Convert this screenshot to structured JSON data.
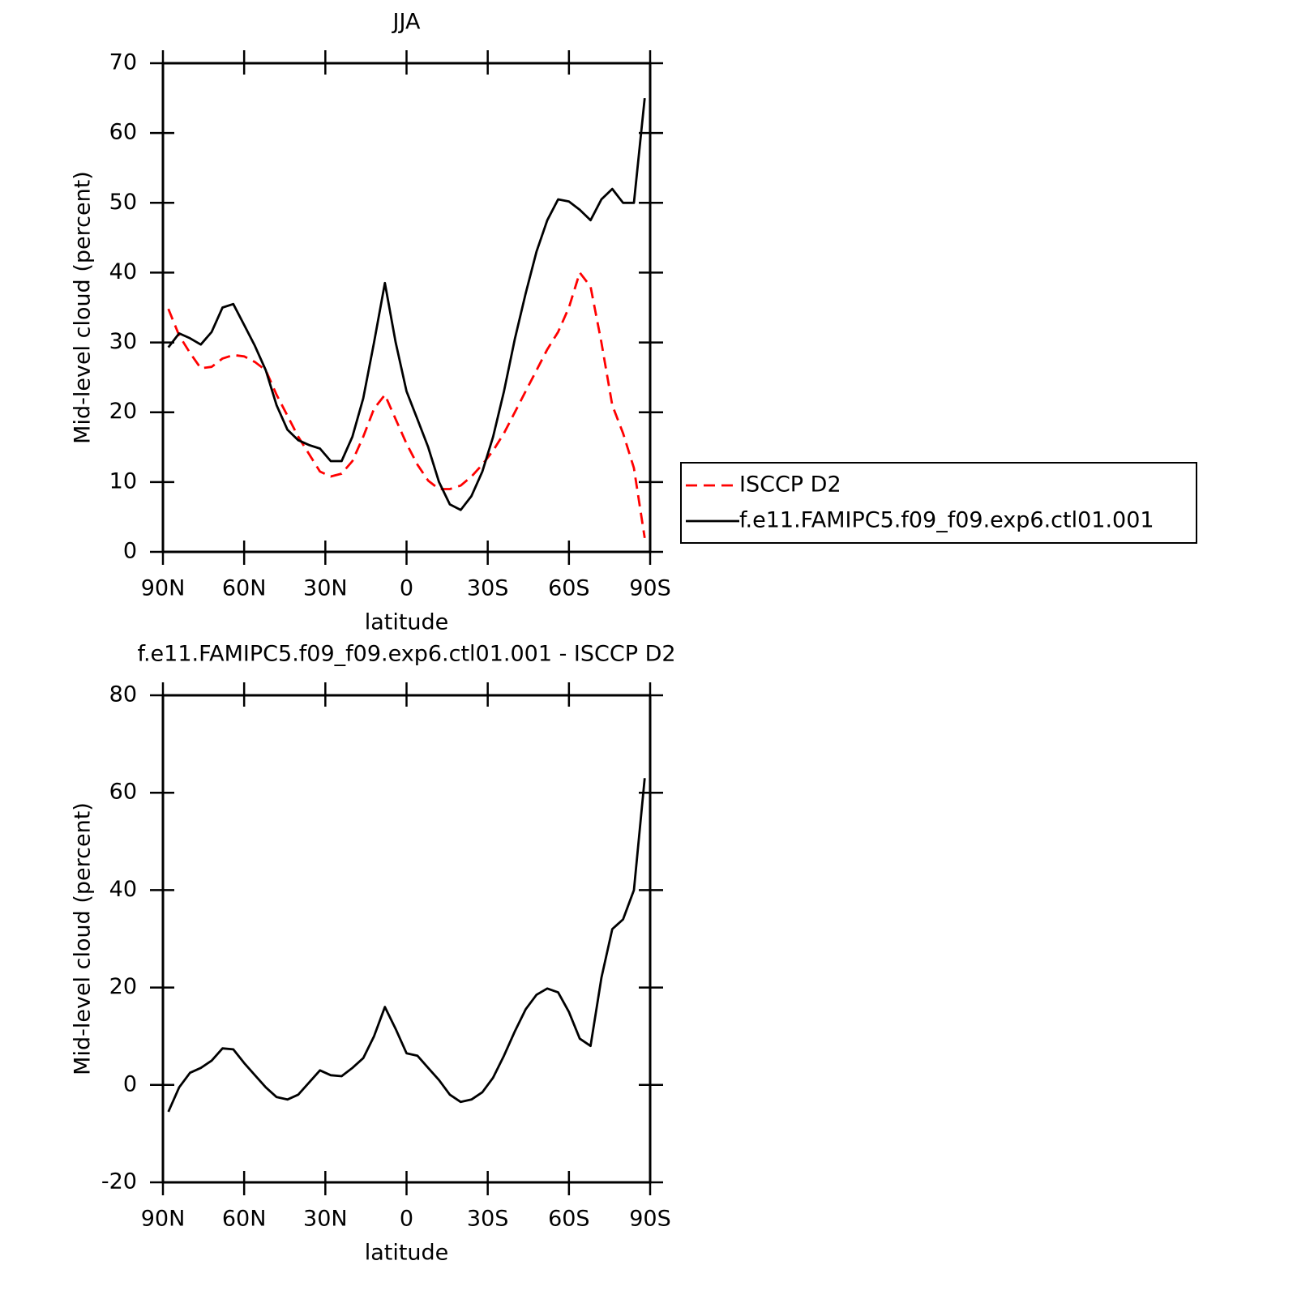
{
  "chart_data": [
    {
      "type": "line",
      "title": "JJA",
      "x_label": "latitude",
      "y_label": "Mid-level cloud (percent)",
      "x": [
        88,
        84,
        80,
        76,
        72,
        68,
        64,
        60,
        56,
        52,
        48,
        44,
        40,
        36,
        32,
        28,
        24,
        20,
        16,
        12,
        8,
        4,
        0,
        -4,
        -8,
        -12,
        -16,
        -20,
        -24,
        -28,
        -32,
        -36,
        -40,
        -44,
        -48,
        -52,
        -56,
        -60,
        -64,
        -68,
        -72,
        -76,
        -80,
        -84,
        -88
      ],
      "series": [
        {
          "name": "ISCCP D2",
          "color": "#ff0000",
          "line_style": "dashed",
          "values": [
            34.8,
            31,
            28.5,
            26.3,
            26.5,
            27.7,
            28.2,
            28,
            27.2,
            26,
            22.5,
            19.5,
            16.5,
            14,
            11.5,
            10.8,
            11.2,
            13,
            16.5,
            20.5,
            22.5,
            19,
            15.5,
            12.5,
            10.2,
            9,
            9,
            9.5,
            10.8,
            12.5,
            14.5,
            17,
            20,
            23,
            26,
            29,
            31.5,
            35,
            40,
            38,
            30,
            21,
            17,
            12,
            2
          ]
        },
        {
          "name": "f.e11.FAMIPC5.f09_f09.exp6.ctl01.001",
          "color": "#000000",
          "line_style": "solid",
          "values": [
            29.3,
            31.3,
            30.6,
            29.7,
            31.5,
            35,
            35.5,
            32.5,
            29.5,
            26,
            21,
            17.5,
            16,
            15.3,
            14.8,
            13,
            13,
            16.5,
            22,
            30,
            38.5,
            30,
            23,
            19,
            15,
            10,
            6.8,
            6,
            8,
            11.5,
            16.5,
            23,
            30.5,
            37,
            43,
            47.5,
            50.5,
            50.2,
            49,
            47.5,
            50.5,
            52,
            50,
            50,
            65
          ]
        }
      ],
      "xlim": [
        90,
        -90
      ],
      "ylim": [
        0,
        70
      ],
      "xticks": [
        {
          "value": 90,
          "label": "90N"
        },
        {
          "value": 60,
          "label": "60N"
        },
        {
          "value": 30,
          "label": "30N"
        },
        0,
        {
          "value": -30,
          "label": "30S"
        },
        {
          "value": -60,
          "label": "60S"
        },
        {
          "value": -90,
          "label": "90S"
        }
      ],
      "yticks": [
        0,
        10,
        20,
        30,
        40,
        50,
        60,
        70
      ],
      "legend": "right"
    },
    {
      "type": "line",
      "title": "f.e11.FAMIPC5.f09_f09.exp6.ctl01.001 - ISCCP D2",
      "x_label": "latitude",
      "y_label": "Mid-level cloud (percent)",
      "x": [
        88,
        84,
        80,
        76,
        72,
        68,
        64,
        60,
        56,
        52,
        48,
        44,
        40,
        36,
        32,
        28,
        24,
        20,
        16,
        12,
        8,
        4,
        0,
        -4,
        -8,
        -12,
        -16,
        -20,
        -24,
        -28,
        -32,
        -36,
        -40,
        -44,
        -48,
        -52,
        -56,
        -60,
        -64,
        -68,
        -72,
        -76,
        -80,
        -84,
        -88
      ],
      "series": [
        {
          "color": "#000000",
          "line_style": "solid",
          "values": [
            -5.5,
            -0.5,
            2.5,
            3.5,
            5,
            7.5,
            7.3,
            4.5,
            2,
            -0.5,
            -2.5,
            -3,
            -2,
            0.5,
            3,
            2,
            1.8,
            3.5,
            5.5,
            10,
            16,
            11.5,
            6.5,
            6,
            3.5,
            1,
            -2,
            -3.5,
            -3,
            -1.5,
            1.5,
            6,
            11,
            15.5,
            18.5,
            19.8,
            19,
            15,
            9.5,
            8,
            22,
            32,
            34,
            40,
            63
          ]
        }
      ],
      "xlim": [
        90,
        -90
      ],
      "ylim": [
        -20,
        80
      ],
      "xticks": [
        {
          "value": 90,
          "label": "90N"
        },
        {
          "value": 60,
          "label": "60N"
        },
        {
          "value": 30,
          "label": "30N"
        },
        0,
        {
          "value": -30,
          "label": "30S"
        },
        {
          "value": -60,
          "label": "60S"
        },
        {
          "value": -90,
          "label": "90S"
        }
      ],
      "yticks": [
        -20,
        0,
        20,
        40,
        60,
        80
      ]
    }
  ]
}
